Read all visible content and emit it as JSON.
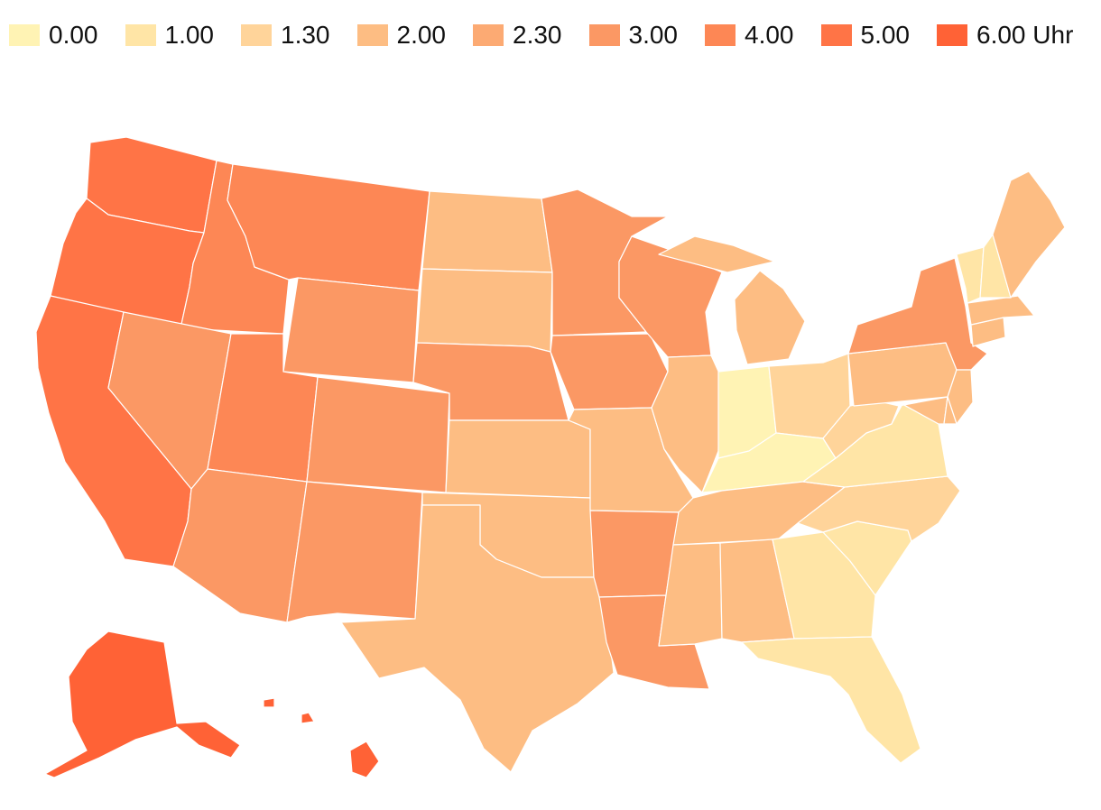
{
  "legend": {
    "items": [
      {
        "label": "0.00",
        "color": "#fff3b4"
      },
      {
        "label": "1.00",
        "color": "#ffe5a6"
      },
      {
        "label": "1.30",
        "color": "#ffd49a"
      },
      {
        "label": "2.00",
        "color": "#fdbd83"
      },
      {
        "label": "2.30",
        "color": "#fcaa73"
      },
      {
        "label": "3.00",
        "color": "#fb9864"
      },
      {
        "label": "4.00",
        "color": "#fd8755"
      },
      {
        "label": "5.00",
        "color": "#ff7446"
      },
      {
        "label": "6.00 Uhr",
        "color": "#ff6236"
      }
    ]
  },
  "regions": {
    "washington": "#ff7446",
    "oregon": "#ff7446",
    "california": "#ff7446",
    "idaho": "#fd8755",
    "nevada": "#fb9864",
    "montana": "#fd8755",
    "wyoming": "#fb9864",
    "utah": "#fd8755",
    "arizona": "#fb9864",
    "colorado": "#fb9864",
    "new-mexico": "#fb9864",
    "north-dakota": "#fdbd83",
    "south-dakota": "#fdbd83",
    "nebraska": "#fb9864",
    "kansas": "#fdbd83",
    "oklahoma": "#fdbd83",
    "texas": "#fdbd83",
    "minnesota": "#fb9864",
    "iowa": "#fb9864",
    "missouri": "#fdbd83",
    "arkansas": "#fb9864",
    "louisiana": "#fb9864",
    "wisconsin": "#fb9864",
    "illinois": "#fdbd83",
    "michigan": "#fdbd83",
    "indiana": "#fff3b4",
    "ohio": "#ffd49a",
    "kentucky": "#fff3b4",
    "tennessee": "#fdbd83",
    "mississippi": "#fdbd83",
    "alabama": "#fdbd83",
    "georgia": "#ffe5a6",
    "florida": "#ffe5a6",
    "south-carolina": "#ffe5a6",
    "north-carolina": "#ffd49a",
    "virginia": "#ffe5a6",
    "west-virginia": "#ffd49a",
    "pennsylvania": "#fdbd83",
    "new-york": "#fb9864",
    "new-jersey": "#fdbd83",
    "maryland": "#fdbd83",
    "delaware": "#fdbd83",
    "connecticut": "#fdbd83",
    "massachusetts": "#fdbd83",
    "vermont": "#ffe5a6",
    "new-hampshire": "#ffe5a6",
    "maine": "#fdbd83",
    "alaska": "#ff6236",
    "hawaii": "#ff6236"
  }
}
